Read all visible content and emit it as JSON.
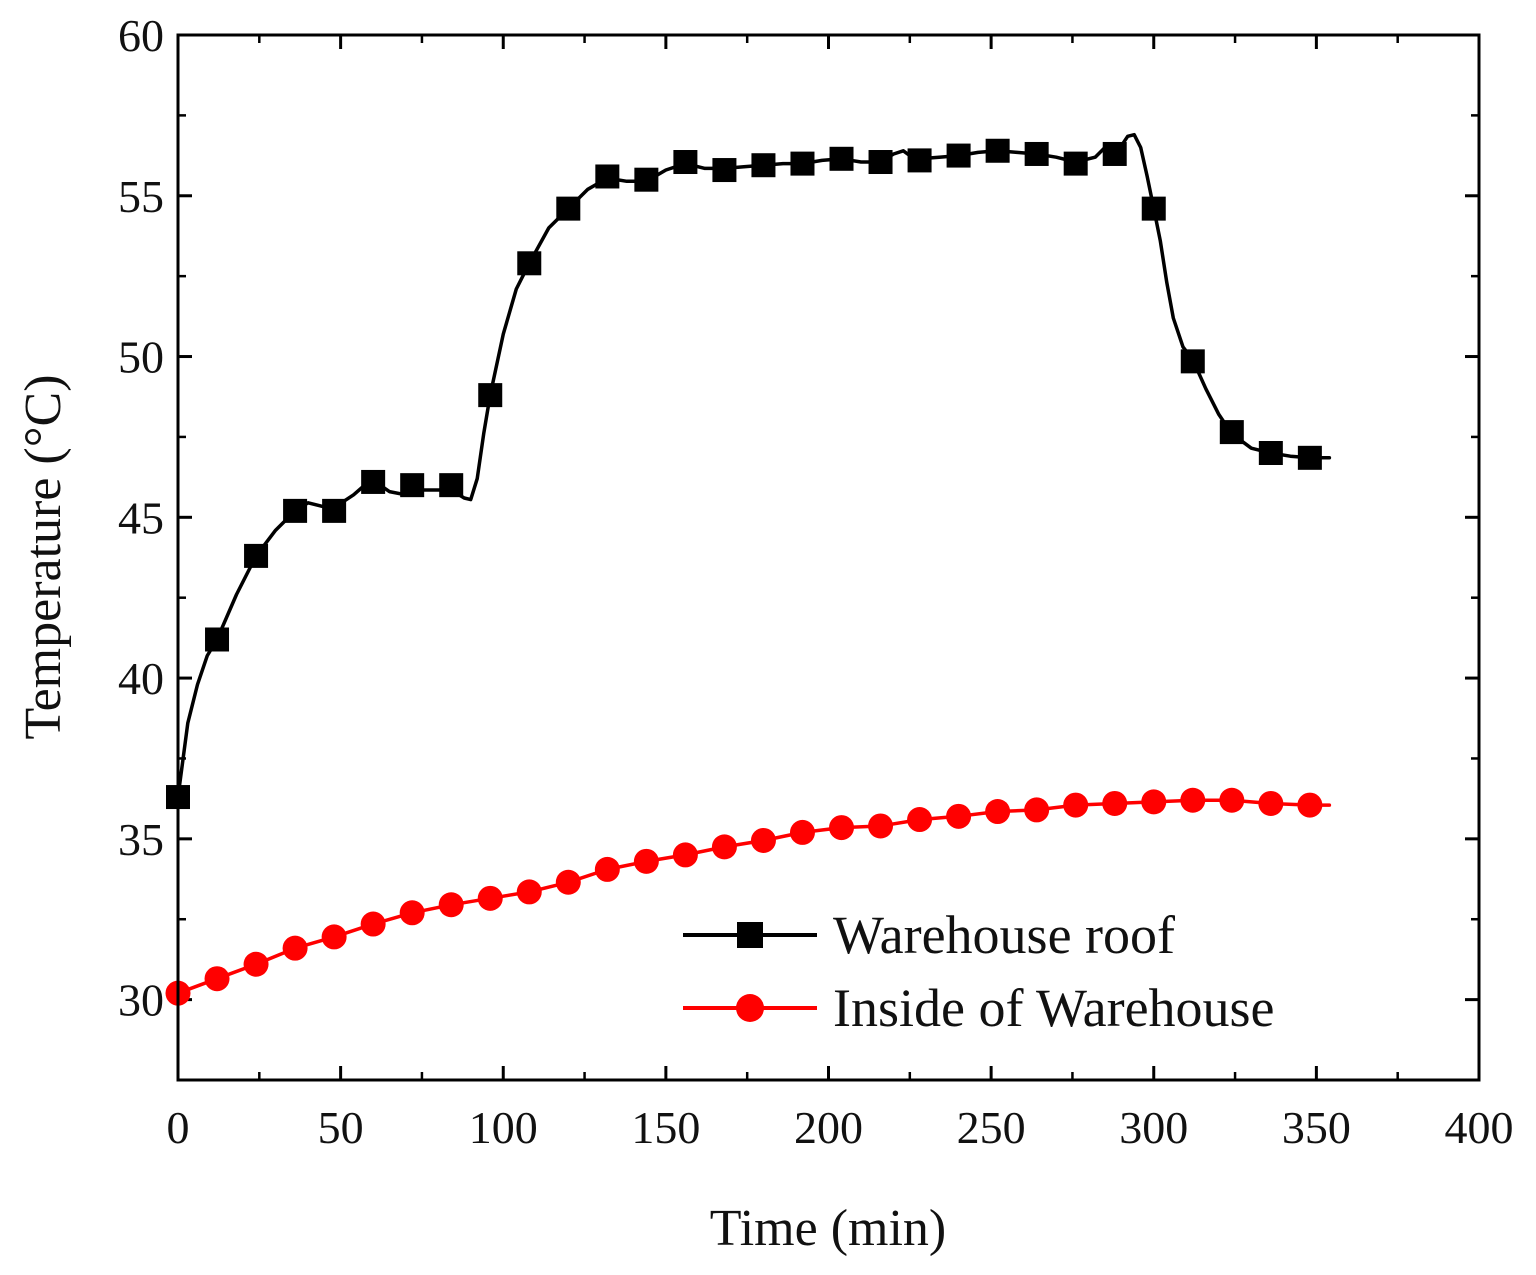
{
  "chart_data": {
    "type": "line",
    "title": "",
    "xlabel": "Time (min)",
    "ylabel": "Temperature (°C)",
    "xlim": [
      0,
      400
    ],
    "ylim": [
      27.5,
      60
    ],
    "xticks": [
      0,
      50,
      100,
      150,
      200,
      250,
      300,
      350,
      400
    ],
    "yticks": [
      30,
      35,
      40,
      45,
      50,
      55,
      60
    ],
    "x_tick_labels": [
      "0",
      "50",
      "100",
      "150",
      "200",
      "250",
      "300",
      "350",
      "400"
    ],
    "y_tick_labels": [
      "30",
      "35",
      "40",
      "45",
      "50",
      "55",
      "60"
    ],
    "grid": false,
    "legend_position": "bottom-right",
    "series": [
      {
        "name": "Warehouse roof",
        "color": "#000000",
        "marker": "square",
        "curve": [
          [
            0,
            36.3
          ],
          [
            3,
            38.6
          ],
          [
            6,
            39.8
          ],
          [
            9,
            40.7
          ],
          [
            12,
            41.2
          ],
          [
            18,
            42.6
          ],
          [
            24,
            43.8
          ],
          [
            30,
            44.6
          ],
          [
            36,
            45.2
          ],
          [
            40,
            45.45
          ],
          [
            44,
            45.35
          ],
          [
            48,
            45.3
          ],
          [
            54,
            45.7
          ],
          [
            58,
            46.05
          ],
          [
            60,
            46.15
          ],
          [
            65,
            45.8
          ],
          [
            70,
            45.7
          ],
          [
            75,
            45.85
          ],
          [
            80,
            45.85
          ],
          [
            84,
            45.85
          ],
          [
            88,
            45.6
          ],
          [
            90,
            45.55
          ],
          [
            92,
            46.2
          ],
          [
            94,
            47.6
          ],
          [
            96,
            48.8
          ],
          [
            100,
            50.7
          ],
          [
            104,
            52.1
          ],
          [
            108,
            52.9
          ],
          [
            114,
            54.0
          ],
          [
            120,
            54.6
          ],
          [
            126,
            55.2
          ],
          [
            132,
            55.55
          ],
          [
            138,
            55.45
          ],
          [
            144,
            55.45
          ],
          [
            150,
            55.8
          ],
          [
            156,
            56.0
          ],
          [
            162,
            55.85
          ],
          [
            168,
            55.85
          ],
          [
            174,
            55.9
          ],
          [
            180,
            55.95
          ],
          [
            186,
            56.0
          ],
          [
            192,
            56.0
          ],
          [
            198,
            56.1
          ],
          [
            204,
            56.15
          ],
          [
            210,
            56.05
          ],
          [
            216,
            56.05
          ],
          [
            220,
            56.3
          ],
          [
            223,
            56.4
          ],
          [
            225,
            56.25
          ],
          [
            228,
            56.15
          ],
          [
            234,
            56.2
          ],
          [
            240,
            56.25
          ],
          [
            246,
            56.35
          ],
          [
            252,
            56.4
          ],
          [
            258,
            56.35
          ],
          [
            264,
            56.3
          ],
          [
            270,
            56.2
          ],
          [
            276,
            56.05
          ],
          [
            282,
            56.2
          ],
          [
            286,
            56.6
          ],
          [
            289,
            56.4
          ],
          [
            292,
            56.85
          ],
          [
            294,
            56.9
          ],
          [
            296,
            56.5
          ],
          [
            298,
            55.6
          ],
          [
            300,
            54.6
          ],
          [
            302,
            53.6
          ],
          [
            304,
            52.3
          ],
          [
            306,
            51.2
          ],
          [
            309,
            50.3
          ],
          [
            312,
            49.9
          ],
          [
            316,
            49.0
          ],
          [
            320,
            48.2
          ],
          [
            324,
            47.6
          ],
          [
            330,
            47.15
          ],
          [
            336,
            47.0
          ],
          [
            342,
            46.9
          ],
          [
            348,
            46.85
          ],
          [
            354,
            46.85
          ]
        ],
        "markers_x": [
          0,
          12,
          24,
          36,
          48,
          60,
          72,
          84,
          96,
          108,
          120,
          132,
          144,
          156,
          168,
          180,
          192,
          204,
          216,
          228,
          240,
          252,
          264,
          276,
          288,
          300,
          312,
          324,
          336,
          348
        ],
        "markers_y": [
          36.3,
          41.2,
          43.8,
          45.2,
          45.2,
          46.1,
          46.0,
          46.0,
          48.8,
          52.9,
          54.6,
          55.6,
          55.5,
          56.05,
          55.8,
          55.95,
          56.0,
          56.15,
          56.05,
          56.1,
          56.25,
          56.4,
          56.3,
          56.0,
          56.3,
          54.6,
          49.85,
          47.65,
          47.0,
          46.85
        ]
      },
      {
        "name": "Inside of Warehouse",
        "color": "#ff0000",
        "marker": "circle",
        "curve": [
          [
            0,
            30.2
          ],
          [
            12,
            30.65
          ],
          [
            24,
            31.1
          ],
          [
            36,
            31.6
          ],
          [
            48,
            31.95
          ],
          [
            60,
            32.35
          ],
          [
            72,
            32.7
          ],
          [
            84,
            32.95
          ],
          [
            96,
            33.15
          ],
          [
            108,
            33.35
          ],
          [
            120,
            33.65
          ],
          [
            132,
            34.05
          ],
          [
            144,
            34.3
          ],
          [
            156,
            34.5
          ],
          [
            168,
            34.75
          ],
          [
            180,
            34.95
          ],
          [
            192,
            35.2
          ],
          [
            204,
            35.35
          ],
          [
            216,
            35.4
          ],
          [
            228,
            35.6
          ],
          [
            240,
            35.7
          ],
          [
            252,
            35.85
          ],
          [
            264,
            35.9
          ],
          [
            276,
            36.05
          ],
          [
            288,
            36.1
          ],
          [
            300,
            36.15
          ],
          [
            312,
            36.2
          ],
          [
            324,
            36.2
          ],
          [
            336,
            36.1
          ],
          [
            348,
            36.05
          ],
          [
            354,
            36.05
          ]
        ],
        "markers_x": [
          0,
          12,
          24,
          36,
          48,
          60,
          72,
          84,
          96,
          108,
          120,
          132,
          144,
          156,
          168,
          180,
          192,
          204,
          216,
          228,
          240,
          252,
          264,
          276,
          288,
          300,
          312,
          324,
          336,
          348
        ],
        "markers_y": [
          30.2,
          30.65,
          31.1,
          31.6,
          31.95,
          32.35,
          32.7,
          32.95,
          33.15,
          33.35,
          33.65,
          34.05,
          34.3,
          34.5,
          34.75,
          34.95,
          35.2,
          35.35,
          35.4,
          35.6,
          35.7,
          35.85,
          35.9,
          36.05,
          36.1,
          36.15,
          36.2,
          36.2,
          36.1,
          36.05
        ]
      }
    ]
  }
}
